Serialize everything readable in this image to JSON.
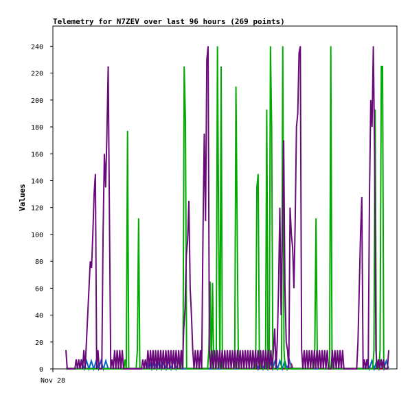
{
  "chart_data": {
    "type": "line",
    "title": "Telemetry for N7ZEV over last 96 hours (269 points)",
    "ylabel": "Values",
    "xlabel": "",
    "x_tick_labels": [
      "Nov 28"
    ],
    "ylim": [
      0,
      255
    ],
    "y_ticks": [
      0,
      20,
      40,
      60,
      80,
      100,
      120,
      140,
      160,
      180,
      200,
      220,
      240
    ],
    "grid": false,
    "legend": "none",
    "series": [
      {
        "color": "#6a0a7a",
        "values": [
          14,
          0,
          0,
          0,
          0,
          0,
          0,
          0,
          7,
          0,
          7,
          0,
          7,
          0,
          14,
          0,
          20,
          40,
          60,
          80,
          75,
          100,
          130,
          145,
          0,
          14,
          0,
          0,
          0,
          100,
          160,
          135,
          175,
          225,
          110,
          0,
          7,
          0,
          14,
          0,
          14,
          0,
          14,
          0,
          14,
          0,
          0,
          0,
          0,
          0,
          0,
          0,
          0,
          0,
          0,
          0,
          0,
          0,
          0,
          0,
          7,
          0,
          7,
          0,
          14,
          0,
          14,
          0,
          14,
          0,
          14,
          0,
          14,
          0,
          14,
          0,
          14,
          0,
          14,
          0,
          14,
          0,
          14,
          0,
          14,
          0,
          14,
          0,
          14,
          0,
          14,
          0,
          30,
          45,
          85,
          95,
          125,
          60,
          40,
          14,
          0,
          14,
          0,
          14,
          0,
          14,
          0,
          100,
          175,
          110,
          230,
          240,
          14,
          0,
          14,
          0,
          14,
          0,
          14,
          0,
          14,
          0,
          14,
          0,
          14,
          0,
          14,
          0,
          14,
          0,
          14,
          0,
          14,
          0,
          14,
          0,
          14,
          0,
          14,
          0,
          14,
          0,
          14,
          0,
          14,
          0,
          14,
          0,
          14,
          0,
          14,
          0,
          14,
          0,
          14,
          0,
          14,
          0,
          14,
          0,
          14,
          0,
          14,
          30,
          0,
          20,
          60,
          120,
          40,
          100,
          170,
          60,
          20,
          14,
          0,
          120,
          100,
          90,
          60,
          110,
          180,
          190,
          235,
          240,
          14,
          0,
          14,
          0,
          14,
          0,
          14,
          0,
          14,
          0,
          14,
          0,
          14,
          0,
          14,
          0,
          14,
          0,
          14,
          0,
          14,
          0,
          0,
          0,
          14,
          0,
          14,
          0,
          14,
          0,
          14,
          0,
          14,
          0,
          0,
          0,
          0,
          0,
          0,
          0,
          0,
          0,
          0,
          0,
          20,
          60,
          100,
          128,
          0,
          7,
          0,
          7,
          0,
          130,
          200,
          180,
          240,
          160,
          14,
          0,
          7,
          0,
          7,
          0,
          7,
          0,
          0,
          0,
          14
        ]
      },
      {
        "color": "#00aa00",
        "values": [
          0,
          0,
          0,
          0,
          0,
          0,
          0,
          0,
          0,
          0,
          0,
          0,
          0,
          0,
          0,
          0,
          0,
          0,
          0,
          0,
          0,
          0,
          0,
          0,
          0,
          0,
          0,
          0,
          0,
          0,
          0,
          0,
          0,
          0,
          0,
          0,
          0,
          0,
          0,
          0,
          0,
          0,
          0,
          0,
          0,
          0,
          0,
          0,
          7,
          0,
          177,
          0,
          0,
          0,
          0,
          0,
          0,
          0,
          14,
          112,
          0,
          0,
          0,
          0,
          0,
          0,
          0,
          0,
          0,
          0,
          0,
          0,
          0,
          0,
          0,
          0,
          0,
          0,
          0,
          0,
          0,
          0,
          0,
          0,
          0,
          0,
          0,
          0,
          0,
          0,
          0,
          0,
          0,
          0,
          14,
          0,
          225,
          185,
          0,
          0,
          0,
          0,
          0,
          0,
          0,
          0,
          0,
          0,
          0,
          0,
          0,
          0,
          0,
          0,
          0,
          0,
          14,
          65,
          0,
          64,
          0,
          0,
          0,
          240,
          100,
          0,
          225,
          0,
          0,
          0,
          0,
          0,
          0,
          0,
          0,
          0,
          0,
          0,
          210,
          105,
          0,
          0,
          0,
          0,
          0,
          0,
          0,
          0,
          0,
          0,
          0,
          0,
          0,
          0,
          0,
          135,
          145,
          14,
          0,
          0,
          0,
          0,
          0,
          193,
          0,
          0,
          240,
          180,
          0,
          0,
          0,
          0,
          0,
          0,
          0,
          0,
          240,
          14,
          0,
          0,
          0,
          0,
          0,
          0,
          0,
          0,
          0,
          0,
          0,
          0,
          0,
          0,
          0,
          0,
          0,
          0,
          0,
          0,
          0,
          0,
          0,
          0,
          14,
          112,
          14,
          0,
          0,
          0,
          0,
          0,
          0,
          0,
          0,
          0,
          0,
          240,
          0,
          0,
          0,
          0,
          0,
          0,
          0,
          0,
          0,
          0,
          0,
          0,
          0,
          0,
          0,
          0,
          0,
          0,
          0,
          0,
          0,
          0,
          0,
          0,
          0,
          0,
          0,
          0,
          0,
          0,
          0,
          0,
          0,
          0,
          14,
          193,
          0,
          0,
          0,
          14,
          225,
          225,
          0,
          0,
          0,
          0,
          0
        ]
      },
      {
        "color": "#0066cc",
        "values": [
          0,
          0,
          0,
          0,
          0,
          0,
          0,
          0,
          0,
          0,
          0,
          0,
          3,
          6,
          3,
          0,
          3,
          6,
          3,
          0,
          3,
          6,
          3,
          0,
          3,
          6,
          3,
          0,
          3,
          6,
          3,
          0,
          3,
          6,
          3,
          0,
          0,
          0,
          0,
          0,
          0,
          0,
          0,
          0,
          0,
          0,
          0,
          0,
          0,
          0,
          0,
          0,
          0,
          0,
          0,
          0,
          0,
          0,
          0,
          0,
          0,
          0,
          0,
          0,
          0,
          0,
          0,
          0,
          3,
          6,
          3,
          0,
          3,
          6,
          3,
          0,
          3,
          6,
          3,
          0,
          3,
          6,
          3,
          0,
          3,
          6,
          3,
          0,
          3,
          6,
          3,
          0,
          3,
          6,
          3,
          0,
          0,
          0,
          0,
          0,
          0,
          0,
          0,
          0,
          0,
          0,
          0,
          0,
          0,
          0,
          0,
          0,
          0,
          0,
          0,
          0,
          0,
          0,
          0,
          0,
          0,
          0,
          0,
          0,
          0,
          0,
          0,
          0,
          0,
          0,
          0,
          0,
          0,
          0,
          0,
          0,
          0,
          0,
          0,
          0,
          0,
          0,
          0,
          0,
          0,
          0,
          0,
          0,
          0,
          0,
          0,
          0,
          0,
          0,
          0,
          0,
          3,
          6,
          3,
          0,
          3,
          6,
          3,
          0,
          3,
          6,
          3,
          0,
          3,
          6,
          3,
          0,
          3,
          6,
          3,
          0,
          3,
          6,
          3,
          0,
          3,
          6,
          3,
          0,
          3,
          6,
          3,
          0,
          0,
          0,
          0,
          0,
          0,
          0,
          0,
          0,
          0,
          0,
          0,
          0,
          0,
          0,
          0,
          0,
          0,
          0,
          0,
          0,
          0,
          0,
          0,
          0,
          0,
          0,
          0,
          0,
          0,
          0,
          0,
          0,
          0,
          0,
          0,
          0,
          0,
          0,
          0,
          0,
          0,
          0,
          0,
          0,
          0,
          0,
          0,
          0,
          0,
          0,
          0,
          0,
          0,
          0,
          0,
          0,
          0,
          0,
          0,
          0,
          3,
          6,
          3,
          0,
          3,
          6,
          3,
          0,
          3,
          6,
          3,
          0,
          3,
          6,
          3,
          0,
          3,
          6,
          3,
          0
        ]
      },
      {
        "color": "#cc0000",
        "values": [
          0,
          0,
          0,
          0,
          0,
          0,
          0,
          0,
          0,
          0,
          0,
          0,
          0,
          0,
          0,
          0,
          0,
          0,
          0,
          0,
          0,
          0,
          0,
          0,
          0,
          0,
          0,
          0,
          0,
          0,
          0,
          0,
          0,
          0,
          0,
          0,
          0,
          0,
          0,
          0,
          0,
          0,
          0,
          0,
          0,
          0,
          0,
          0,
          0,
          0,
          0,
          0,
          0,
          0,
          0,
          0,
          0,
          0,
          0,
          0,
          0,
          0,
          0,
          0,
          0,
          0,
          0,
          0,
          0,
          0,
          0,
          0,
          0,
          0,
          0,
          0,
          0,
          0,
          0,
          0,
          0,
          0,
          0,
          0,
          0,
          0,
          0,
          0,
          0,
          0,
          0,
          0,
          0,
          0,
          0,
          0,
          0,
          0,
          0,
          0,
          0,
          0,
          0,
          0,
          0,
          0,
          0,
          0,
          0,
          0,
          0,
          0,
          0,
          0,
          0,
          0,
          0,
          0,
          0,
          0,
          0,
          0,
          0,
          0,
          0,
          0,
          0,
          0,
          0,
          0,
          0,
          0,
          0,
          0,
          0,
          0,
          0,
          0,
          0,
          0,
          0,
          0,
          0,
          0,
          0,
          0,
          0,
          0,
          0,
          0,
          0,
          0,
          0,
          0,
          0,
          0,
          0,
          0,
          0,
          0,
          0,
          0,
          0,
          0,
          0,
          0,
          0,
          0,
          0,
          0,
          0,
          0,
          0,
          0,
          0,
          0,
          0,
          0,
          0,
          0,
          0,
          0,
          0,
          0,
          0,
          0,
          3,
          0,
          0,
          0,
          0,
          0,
          0,
          0,
          0,
          0,
          0,
          0,
          0,
          0,
          0,
          0,
          0,
          0,
          0,
          0,
          0,
          0,
          0,
          0,
          0,
          0,
          0,
          0,
          0,
          0,
          0,
          0,
          0,
          0,
          0,
          0,
          0,
          0,
          0,
          0,
          0,
          0,
          0,
          0,
          0,
          0,
          0,
          0,
          0,
          0,
          0,
          0,
          0,
          0,
          0,
          0,
          0,
          0,
          0,
          0,
          0,
          0,
          0,
          0,
          0,
          0,
          0,
          0,
          0,
          0,
          0,
          0,
          0,
          0,
          0,
          0,
          0,
          0,
          0,
          0,
          0
        ]
      }
    ]
  }
}
